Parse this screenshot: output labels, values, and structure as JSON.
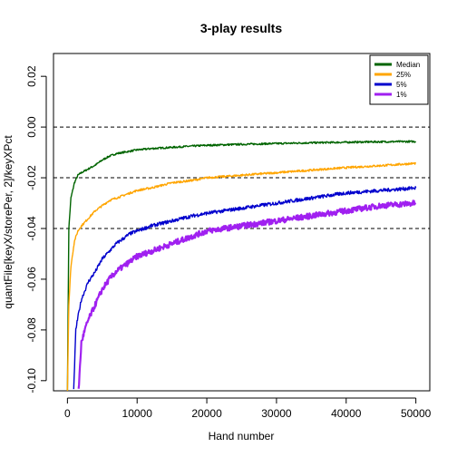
{
  "chart_data": {
    "type": "line",
    "title": "3-play results",
    "xlabel": "Hand number",
    "ylabel": "quantFile[keyX/storePer, 2]/keyXPct",
    "xlim": [
      -2000,
      52000
    ],
    "ylim": [
      -0.104,
      0.029
    ],
    "x_ticks": [
      0,
      10000,
      20000,
      30000,
      40000,
      50000
    ],
    "x_tick_labels": [
      "0",
      "10000",
      "20000",
      "30000",
      "40000",
      "50000"
    ],
    "y_ticks": [
      -0.1,
      -0.08,
      -0.06,
      -0.04,
      -0.02,
      0.0,
      0.02
    ],
    "y_tick_labels": [
      "-0.10",
      "-0.08",
      "-0.06",
      "-0.04",
      "-0.02",
      "0.00",
      "0.02"
    ],
    "reference_lines": [
      0.0,
      -0.02,
      -0.04
    ],
    "legend_position": "top-right",
    "series": [
      {
        "name": "Median",
        "color": "#006400",
        "x": [
          0,
          200,
          500,
          1000,
          1500,
          2000,
          3000,
          4000,
          5000,
          6000,
          7000,
          8000,
          9000,
          10000,
          12000,
          15000,
          18000,
          20000,
          25000,
          30000,
          35000,
          40000,
          45000,
          50000
        ],
        "y": [
          -0.104,
          -0.04,
          -0.028,
          -0.022,
          -0.019,
          -0.018,
          -0.0165,
          -0.015,
          -0.013,
          -0.0115,
          -0.0105,
          -0.01,
          -0.0095,
          -0.009,
          -0.0085,
          -0.008,
          -0.0075,
          -0.0072,
          -0.0068,
          -0.0065,
          -0.0062,
          -0.006,
          -0.0058,
          -0.0057
        ]
      },
      {
        "name": "25%",
        "color": "#FFA500",
        "x": [
          0,
          200,
          500,
          1000,
          1500,
          2000,
          3000,
          4000,
          5000,
          6000,
          7000,
          8000,
          9000,
          10000,
          12000,
          15000,
          18000,
          20000,
          25000,
          30000,
          35000,
          40000,
          45000,
          50000
        ],
        "y": [
          -0.104,
          -0.07,
          -0.055,
          -0.045,
          -0.041,
          -0.039,
          -0.036,
          -0.033,
          -0.031,
          -0.029,
          -0.028,
          -0.027,
          -0.026,
          -0.025,
          -0.024,
          -0.022,
          -0.021,
          -0.02,
          -0.019,
          -0.018,
          -0.017,
          -0.016,
          -0.0152,
          -0.0143
        ]
      },
      {
        "name": "5%",
        "color": "#0000CD",
        "x": [
          900,
          1200,
          1500,
          2000,
          3000,
          4000,
          5000,
          6000,
          7000,
          8000,
          9000,
          10000,
          12000,
          15000,
          18000,
          20000,
          25000,
          30000,
          35000,
          40000,
          45000,
          50000
        ],
        "y": [
          -0.104,
          -0.08,
          -0.075,
          -0.068,
          -0.061,
          -0.057,
          -0.052,
          -0.049,
          -0.046,
          -0.044,
          -0.042,
          -0.041,
          -0.039,
          -0.037,
          -0.035,
          -0.034,
          -0.032,
          -0.03,
          -0.028,
          -0.026,
          -0.025,
          -0.024
        ]
      },
      {
        "name": "1%",
        "color": "#A020F0",
        "x": [
          1600,
          2000,
          2500,
          3000,
          4000,
          5000,
          6000,
          7000,
          8000,
          9000,
          10000,
          12000,
          15000,
          18000,
          20000,
          25000,
          30000,
          35000,
          40000,
          45000,
          50000
        ],
        "y": [
          -0.104,
          -0.085,
          -0.08,
          -0.076,
          -0.07,
          -0.064,
          -0.06,
          -0.057,
          -0.055,
          -0.053,
          -0.051,
          -0.049,
          -0.046,
          -0.043,
          -0.041,
          -0.039,
          -0.037,
          -0.035,
          -0.033,
          -0.031,
          -0.03
        ]
      }
    ]
  }
}
